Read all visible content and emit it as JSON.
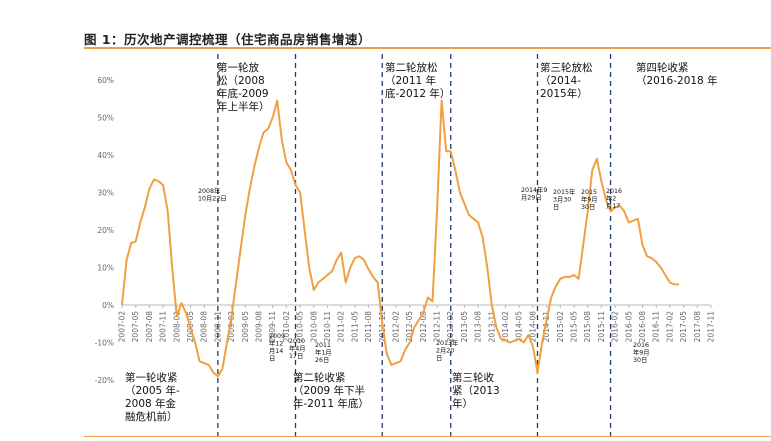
{
  "title": "图 1：历次地产调控梳理（住宅商品房销售增速）",
  "chart_data": {
    "type": "line",
    "title": "图 1：历次地产调控梳理（住宅商品房销售增速）",
    "ylim": [
      -0.2,
      0.6
    ],
    "yticks": [
      "-20%",
      "-10%",
      "0%",
      "10%",
      "20%",
      "30%",
      "40%",
      "50%",
      "60%"
    ],
    "ytick_values": [
      -0.2,
      -0.1,
      0,
      0.1,
      0.2,
      0.3,
      0.4,
      0.5,
      0.6
    ],
    "xticks": [
      "2007-02",
      "2007-05",
      "2007-08",
      "2007-11",
      "2008-02",
      "2008-05",
      "2008-08",
      "2008-11",
      "2009-02",
      "2009-05",
      "2009-08",
      "2009-11",
      "2010-02",
      "2010-05",
      "2010-08",
      "2010-11",
      "2011-02",
      "2011-05",
      "2011-08",
      "2011-11",
      "2012-02",
      "2012-05",
      "2012-08",
      "2012-11",
      "2013-02",
      "2013-05",
      "2013-08",
      "2013-11",
      "2014-02",
      "2014-05",
      "2014-08",
      "2014-11",
      "2015-02",
      "2015-05",
      "2015-08",
      "2015-11",
      "2016-02",
      "2016-05",
      "2016-08",
      "2016-11",
      "2017-02",
      "2017-05",
      "2017-08",
      "2017-11"
    ],
    "series": [
      {
        "color": "#f0a040",
        "points": [
          [
            "2007-02",
            0.0
          ],
          [
            "2007-03",
            0.12
          ],
          [
            "2007-04",
            0.165
          ],
          [
            "2007-05",
            0.17
          ],
          [
            "2007-06",
            0.22
          ],
          [
            "2007-07",
            0.26
          ],
          [
            "2007-08",
            0.31
          ],
          [
            "2007-09",
            0.335
          ],
          [
            "2007-10",
            0.33
          ],
          [
            "2007-11",
            0.32
          ],
          [
            "2007-12",
            0.25
          ],
          [
            "2008-01",
            0.1
          ],
          [
            "2008-02",
            -0.03
          ],
          [
            "2008-03",
            0.005
          ],
          [
            "2008-04",
            -0.02
          ],
          [
            "2008-05",
            -0.06
          ],
          [
            "2008-06",
            -0.1
          ],
          [
            "2008-07",
            -0.15
          ],
          [
            "2008-08",
            -0.155
          ],
          [
            "2008-09",
            -0.16
          ],
          [
            "2008-10",
            -0.18
          ],
          [
            "2008-11",
            -0.19
          ],
          [
            "2008-12",
            -0.17
          ],
          [
            "2009-01",
            -0.1
          ],
          [
            "2009-02",
            -0.03
          ],
          [
            "2009-03",
            0.06
          ],
          [
            "2009-04",
            0.15
          ],
          [
            "2009-05",
            0.24
          ],
          [
            "2009-06",
            0.31
          ],
          [
            "2009-07",
            0.37
          ],
          [
            "2009-08",
            0.42
          ],
          [
            "2009-09",
            0.46
          ],
          [
            "2009-10",
            0.47
          ],
          [
            "2009-11",
            0.5
          ],
          [
            "2009-12",
            0.545
          ],
          [
            "2010-01",
            0.44
          ],
          [
            "2010-02",
            0.38
          ],
          [
            "2010-03",
            0.36
          ],
          [
            "2010-04",
            0.32
          ],
          [
            "2010-05",
            0.3
          ],
          [
            "2010-06",
            0.2
          ],
          [
            "2010-07",
            0.1
          ],
          [
            "2010-08",
            0.04
          ],
          [
            "2010-09",
            0.06
          ],
          [
            "2010-10",
            0.07
          ],
          [
            "2010-11",
            0.08
          ],
          [
            "2010-12",
            0.09
          ],
          [
            "2011-01",
            0.12
          ],
          [
            "2011-02",
            0.14
          ],
          [
            "2011-03",
            0.06
          ],
          [
            "2011-04",
            0.1
          ],
          [
            "2011-05",
            0.125
          ],
          [
            "2011-06",
            0.13
          ],
          [
            "2011-07",
            0.12
          ],
          [
            "2011-08",
            0.095
          ],
          [
            "2011-09",
            0.075
          ],
          [
            "2011-10",
            0.06
          ],
          [
            "2011-11",
            -0.05
          ],
          [
            "2011-12",
            -0.13
          ],
          [
            "2012-01",
            -0.16
          ],
          [
            "2012-02",
            -0.155
          ],
          [
            "2012-03",
            -0.15
          ],
          [
            "2012-04",
            -0.12
          ],
          [
            "2012-05",
            -0.1
          ],
          [
            "2012-06",
            -0.06
          ],
          [
            "2012-07",
            -0.04
          ],
          [
            "2012-08",
            -0.02
          ],
          [
            "2012-09",
            0.02
          ],
          [
            "2012-10",
            0.01
          ],
          [
            "2012-11",
            0.25
          ],
          [
            "2012-12",
            0.545
          ],
          [
            "2013-01",
            0.41
          ],
          [
            "2013-02",
            0.41
          ],
          [
            "2013-03",
            0.36
          ],
          [
            "2013-04",
            0.3
          ],
          [
            "2013-05",
            0.27
          ],
          [
            "2013-06",
            0.24
          ],
          [
            "2013-07",
            0.23
          ],
          [
            "2013-08",
            0.22
          ],
          [
            "2013-09",
            0.18
          ],
          [
            "2013-10",
            0.1
          ],
          [
            "2013-11",
            0.0
          ],
          [
            "2013-12",
            -0.06
          ],
          [
            "2014-01",
            -0.09
          ],
          [
            "2014-02",
            -0.095
          ],
          [
            "2014-03",
            -0.1
          ],
          [
            "2014-04",
            -0.095
          ],
          [
            "2014-05",
            -0.09
          ],
          [
            "2014-06",
            -0.1
          ],
          [
            "2014-07",
            -0.08
          ],
          [
            "2014-08",
            -0.11
          ],
          [
            "2014-09",
            -0.18
          ],
          [
            "2014-10",
            -0.1
          ],
          [
            "2014-11",
            -0.04
          ],
          [
            "2014-12",
            0.02
          ],
          [
            "2015-01",
            0.05
          ],
          [
            "2015-02",
            0.07
          ],
          [
            "2015-03",
            0.075
          ],
          [
            "2015-04",
            0.075
          ],
          [
            "2015-05",
            0.08
          ],
          [
            "2015-06",
            0.07
          ],
          [
            "2015-07",
            0.16
          ],
          [
            "2015-08",
            0.25
          ],
          [
            "2015-09",
            0.36
          ],
          [
            "2015-10",
            0.39
          ],
          [
            "2015-11",
            0.33
          ],
          [
            "2015-12",
            0.28
          ],
          [
            "2016-01",
            0.25
          ],
          [
            "2016-02",
            0.26
          ],
          [
            "2016-03",
            0.265
          ],
          [
            "2016-04",
            0.25
          ],
          [
            "2016-05",
            0.22
          ],
          [
            "2016-06",
            0.225
          ],
          [
            "2016-07",
            0.23
          ],
          [
            "2016-08",
            0.16
          ],
          [
            "2016-09",
            0.13
          ],
          [
            "2016-10",
            0.125
          ],
          [
            "2016-11",
            0.115
          ],
          [
            "2016-12",
            0.1
          ],
          [
            "2017-01",
            0.08
          ],
          [
            "2017-02",
            0.06
          ],
          [
            "2017-03",
            0.055
          ],
          [
            "2017-04",
            0.055
          ]
        ]
      }
    ],
    "periods": [
      {
        "x": "2008-11",
        "lines": [
          "第一轮放",
          "松（2008",
          "年底-2009",
          "年上半年）"
        ]
      },
      {
        "x": "2010-04",
        "lines": []
      },
      {
        "x": "2011-11",
        "lines": [
          "第二轮放松",
          "（2011 年",
          "底-2012 年）"
        ]
      },
      {
        "x": "2013-02",
        "lines": []
      },
      {
        "x": "2014-09",
        "lines": [
          "第三轮放松",
          "（2014-",
          "2015年）"
        ]
      },
      {
        "x": "2016-01",
        "lines": [
          "第四轮收紧",
          "（2016-2018 年"
        ]
      }
    ],
    "tightening_labels": [
      [
        "第一轮收紧",
        "（2005 年-",
        "2008 年金",
        "融危机前）"
      ],
      [
        "第二轮收紧",
        "（2009 年下半",
        "年-2011 年底）"
      ],
      [
        "第三轮收",
        "紧（2013",
        "年）"
      ]
    ],
    "date_notes": [
      {
        "x": "2008-10",
        "lines": [
          "2008年",
          "10月22日"
        ]
      },
      {
        "x": "2009-12",
        "lines": [
          "2009",
          "年12",
          "月14",
          "日"
        ]
      },
      {
        "x": "2010-05",
        "lines": [
          "2010",
          "年4月",
          "17日"
        ]
      },
      {
        "x": "2011-01",
        "lines": [
          "2011",
          "年1月",
          "26日"
        ]
      },
      {
        "x": "2013-02",
        "lines": [
          "2013年",
          "2月20",
          "日"
        ]
      },
      {
        "x": "2014-09",
        "lines": [
          "2014年9",
          "月29日"
        ]
      },
      {
        "x": "2015-03",
        "lines": [
          "2015年",
          "3月30",
          "日"
        ]
      },
      {
        "x": "2015-09",
        "lines": [
          "2015",
          "年9月",
          "30日"
        ]
      },
      {
        "x": "2016-02",
        "lines": [
          "2016",
          "年2",
          "月17"
        ]
      },
      {
        "x": "2016-09",
        "lines": [
          "2016",
          "年9月",
          "30日"
        ]
      }
    ]
  }
}
